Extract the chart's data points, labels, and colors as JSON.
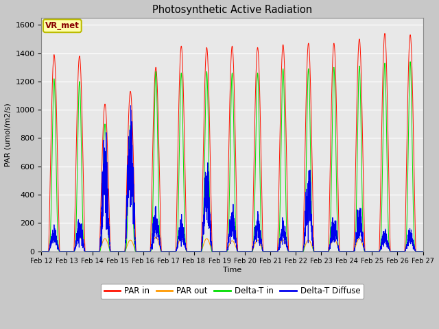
{
  "title": "Photosynthetic Active Radiation",
  "ylabel": "PAR (umol/m2/s)",
  "xlabel": "Time",
  "ylim": [
    0,
    1650
  ],
  "yticks": [
    0,
    200,
    400,
    600,
    800,
    1000,
    1200,
    1400,
    1600
  ],
  "xtick_labels": [
    "Feb 12",
    "Feb 13",
    "Feb 14",
    "Feb 15",
    "Feb 16",
    "Feb 17",
    "Feb 18",
    "Feb 19",
    "Feb 20",
    "Feb 21",
    "Feb 22",
    "Feb 23",
    "Feb 24",
    "Feb 25",
    "Feb 26",
    "Feb 27"
  ],
  "fig_bg_color": "#c8c8c8",
  "plot_bg_color": "#e8e8e8",
  "colors": {
    "PAR_in": "#ff1100",
    "PAR_out": "#ff9900",
    "Delta_T_in": "#00dd00",
    "Delta_T_diffuse": "#0000ee"
  },
  "legend_labels": [
    "PAR in",
    "PAR out",
    "Delta-T in",
    "Delta-T Diffuse"
  ],
  "annotation_text": "VR_met",
  "annotation_bg": "#ffffaa",
  "annotation_border": "#bbbb00",
  "n_days": 15,
  "peaks_par_in": [
    1390,
    1380,
    1040,
    1130,
    1300,
    1450,
    1440,
    1450,
    1440,
    1460,
    1470,
    1470,
    1500,
    1540,
    1530
  ],
  "peaks_par_out": [
    105,
    105,
    90,
    80,
    100,
    90,
    90,
    75,
    80,
    80,
    80,
    90,
    90,
    85,
    85
  ],
  "peaks_delta_in": [
    1220,
    1200,
    900,
    890,
    1270,
    1260,
    1270,
    1260,
    1260,
    1290,
    1290,
    1300,
    1310,
    1330,
    1340
  ],
  "peaks_delta_diff": [
    110,
    160,
    530,
    690,
    215,
    150,
    440,
    210,
    180,
    145,
    390,
    170,
    210,
    105,
    105
  ]
}
